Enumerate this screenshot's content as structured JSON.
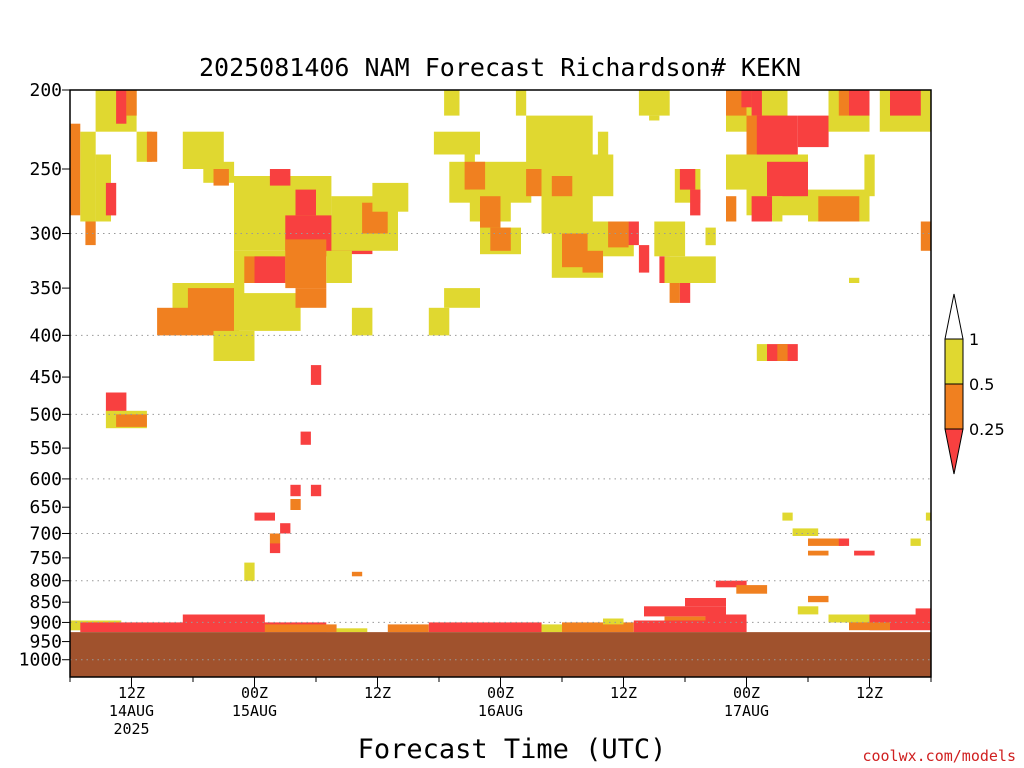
{
  "chart_data": {
    "type": "heatmap",
    "title": "2025081406 NAM Forecast Richardson# KEKN",
    "xlabel": "Forecast Time (UTC)",
    "ylabel": "",
    "credit": "coolwx.com/models",
    "x_units": "hours since 2025-08-14 06Z",
    "xlim": [
      0,
      84
    ],
    "y_axis": "pressure (hPa), log scale, inverted",
    "ylim": [
      1050,
      200
    ],
    "y_ticks": [
      200,
      250,
      300,
      350,
      400,
      450,
      500,
      550,
      600,
      650,
      700,
      750,
      800,
      850,
      900,
      950,
      1000
    ],
    "y_gridlines": [
      300,
      400,
      500,
      600,
      700,
      800,
      900,
      1000
    ],
    "x_ticks": [
      {
        "x": 6,
        "line1": "12Z",
        "line2": "14AUG",
        "line3": "2025"
      },
      {
        "x": 18,
        "line1": "00Z",
        "line2": "15AUG",
        "line3": ""
      },
      {
        "x": 30,
        "line1": "12Z",
        "line2": "",
        "line3": ""
      },
      {
        "x": 42,
        "line1": "00Z",
        "line2": "16AUG",
        "line3": ""
      },
      {
        "x": 54,
        "line1": "12Z",
        "line2": "",
        "line3": ""
      },
      {
        "x": 66,
        "line1": "00Z",
        "line2": "17AUG",
        "line3": ""
      },
      {
        "x": 78,
        "line1": "12Z",
        "line2": "",
        "line3": ""
      }
    ],
    "colorbar": {
      "ticks": [
        "1",
        "0.5",
        "0.25"
      ],
      "bins": [
        {
          "range": "<0.25",
          "color": "#f84040"
        },
        {
          "range": "0.25-0.5",
          "color": "#f08020"
        },
        {
          "range": "0.5-1",
          "color": "#e0d830"
        },
        {
          "range": ">1",
          "color": "#ffffff"
        }
      ]
    },
    "ground_color": "#a0522d",
    "surface_pressure": 925,
    "cells": [
      {
        "x0": 2.5,
        "x1": 6.5,
        "p0": 200,
        "p1": 225,
        "c": "y"
      },
      {
        "x0": 4.5,
        "x1": 5.5,
        "p0": 200,
        "p1": 220,
        "c": "r"
      },
      {
        "x0": 5.5,
        "x1": 6.5,
        "p0": 200,
        "p1": 215,
        "c": "o"
      },
      {
        "x0": 0,
        "x1": 1,
        "p0": 220,
        "p1": 285,
        "c": "o"
      },
      {
        "x0": 1,
        "x1": 2.5,
        "p0": 225,
        "p1": 290,
        "c": "y"
      },
      {
        "x0": 2.5,
        "x1": 4,
        "p0": 240,
        "p1": 290,
        "c": "y"
      },
      {
        "x0": 3.5,
        "x1": 4.5,
        "p0": 260,
        "p1": 285,
        "c": "r"
      },
      {
        "x0": 1.5,
        "x1": 2.5,
        "p0": 290,
        "p1": 310,
        "c": "o"
      },
      {
        "x0": 6.5,
        "x1": 8,
        "p0": 225,
        "p1": 245,
        "c": "y"
      },
      {
        "x0": 7.5,
        "x1": 8.5,
        "p0": 225,
        "p1": 245,
        "c": "o"
      },
      {
        "x0": 11,
        "x1": 15,
        "p0": 225,
        "p1": 250,
        "c": "y"
      },
      {
        "x0": 13,
        "x1": 16,
        "p0": 245,
        "p1": 260,
        "c": "y"
      },
      {
        "x0": 14,
        "x1": 15.5,
        "p0": 250,
        "p1": 262,
        "c": "o"
      },
      {
        "x0": 16,
        "x1": 25.5,
        "p0": 255,
        "p1": 315,
        "c": "y"
      },
      {
        "x0": 19.5,
        "x1": 21.5,
        "p0": 250,
        "p1": 262,
        "c": "r"
      },
      {
        "x0": 22,
        "x1": 24,
        "p0": 265,
        "p1": 285,
        "c": "r"
      },
      {
        "x0": 21,
        "x1": 27,
        "p0": 285,
        "p1": 320,
        "c": "r"
      },
      {
        "x0": 26,
        "x1": 29.5,
        "p0": 280,
        "p1": 318,
        "c": "r"
      },
      {
        "x0": 25.5,
        "x1": 32,
        "p0": 270,
        "p1": 315,
        "c": "y"
      },
      {
        "x0": 28.5,
        "x1": 31,
        "p0": 275,
        "p1": 300,
        "c": "o"
      },
      {
        "x0": 29.5,
        "x1": 33,
        "p0": 260,
        "p1": 282,
        "c": "y"
      },
      {
        "x0": 16,
        "x1": 22,
        "p0": 315,
        "p1": 345,
        "c": "y"
      },
      {
        "x0": 17,
        "x1": 20,
        "p0": 320,
        "p1": 345,
        "c": "o"
      },
      {
        "x0": 18,
        "x1": 21,
        "p0": 320,
        "p1": 345,
        "c": "r"
      },
      {
        "x0": 21,
        "x1": 25,
        "p0": 305,
        "p1": 350,
        "c": "o"
      },
      {
        "x0": 25,
        "x1": 27.5,
        "p0": 315,
        "p1": 345,
        "c": "y"
      },
      {
        "x0": 10,
        "x1": 17,
        "p0": 345,
        "p1": 375,
        "c": "y"
      },
      {
        "x0": 11.5,
        "x1": 16,
        "p0": 350,
        "p1": 395,
        "c": "o"
      },
      {
        "x0": 8.5,
        "x1": 16.5,
        "p0": 370,
        "p1": 400,
        "c": "o"
      },
      {
        "x0": 16,
        "x1": 22.5,
        "p0": 355,
        "p1": 395,
        "c": "y"
      },
      {
        "x0": 22,
        "x1": 25,
        "p0": 350,
        "p1": 370,
        "c": "o"
      },
      {
        "x0": 14,
        "x1": 18,
        "p0": 395,
        "p1": 430,
        "c": "y"
      },
      {
        "x0": 27.5,
        "x1": 29.5,
        "p0": 370,
        "p1": 400,
        "c": "y"
      },
      {
        "x0": 35,
        "x1": 37,
        "p0": 370,
        "p1": 400,
        "c": "y"
      },
      {
        "x0": 36.5,
        "x1": 40,
        "p0": 350,
        "p1": 370,
        "c": "y"
      },
      {
        "x0": 3.5,
        "x1": 5.5,
        "p0": 470,
        "p1": 500,
        "c": "r"
      },
      {
        "x0": 3.5,
        "x1": 7.5,
        "p0": 495,
        "p1": 520,
        "c": "y"
      },
      {
        "x0": 4.5,
        "x1": 7.5,
        "p0": 500,
        "p1": 518,
        "c": "o"
      },
      {
        "x0": 23.5,
        "x1": 24.5,
        "p0": 435,
        "p1": 460,
        "c": "r"
      },
      {
        "x0": 22.5,
        "x1": 23.5,
        "p0": 525,
        "p1": 545,
        "c": "r"
      },
      {
        "x0": 21.5,
        "x1": 22.5,
        "p0": 610,
        "p1": 630,
        "c": "r"
      },
      {
        "x0": 23.5,
        "x1": 24.5,
        "p0": 610,
        "p1": 630,
        "c": "r"
      },
      {
        "x0": 21.5,
        "x1": 22.5,
        "p0": 635,
        "p1": 655,
        "c": "o"
      },
      {
        "x0": 18,
        "x1": 20,
        "p0": 660,
        "p1": 675,
        "c": "r"
      },
      {
        "x0": 20.5,
        "x1": 21.5,
        "p0": 680,
        "p1": 700,
        "c": "r"
      },
      {
        "x0": 19.5,
        "x1": 20.5,
        "p0": 700,
        "p1": 720,
        "c": "o"
      },
      {
        "x0": 19.5,
        "x1": 20.5,
        "p0": 720,
        "p1": 740,
        "c": "r"
      },
      {
        "x0": 17,
        "x1": 18,
        "p0": 760,
        "p1": 800,
        "c": "y"
      },
      {
        "x0": 27.5,
        "x1": 28.5,
        "p0": 780,
        "p1": 790,
        "c": "o"
      },
      {
        "x0": 35.5,
        "x1": 40,
        "p0": 225,
        "p1": 240,
        "c": "y"
      },
      {
        "x0": 36.5,
        "x1": 38,
        "p0": 200,
        "p1": 215,
        "c": "y"
      },
      {
        "x0": 38.5,
        "x1": 39.5,
        "p0": 240,
        "p1": 250,
        "c": "y"
      },
      {
        "x0": 37,
        "x1": 45,
        "p0": 245,
        "p1": 275,
        "c": "y"
      },
      {
        "x0": 38.5,
        "x1": 40.5,
        "p0": 245,
        "p1": 265,
        "c": "o"
      },
      {
        "x0": 39,
        "x1": 43,
        "p0": 265,
        "p1": 290,
        "c": "y"
      },
      {
        "x0": 40,
        "x1": 42,
        "p0": 270,
        "p1": 300,
        "c": "o"
      },
      {
        "x0": 40,
        "x1": 44,
        "p0": 295,
        "p1": 318,
        "c": "y"
      },
      {
        "x0": 41,
        "x1": 43,
        "p0": 295,
        "p1": 315,
        "c": "o"
      },
      {
        "x0": 43.5,
        "x1": 44.5,
        "p0": 200,
        "p1": 215,
        "c": "y"
      },
      {
        "x0": 44.5,
        "x1": 51,
        "p0": 215,
        "p1": 250,
        "c": "y"
      },
      {
        "x0": 44.5,
        "x1": 46,
        "p0": 250,
        "p1": 270,
        "c": "o"
      },
      {
        "x0": 46,
        "x1": 51,
        "p0": 250,
        "p1": 300,
        "c": "y"
      },
      {
        "x0": 47,
        "x1": 49,
        "p0": 255,
        "p1": 270,
        "c": "o"
      },
      {
        "x0": 50,
        "x1": 53,
        "p0": 240,
        "p1": 270,
        "c": "y"
      },
      {
        "x0": 49,
        "x1": 50,
        "p0": 290,
        "p1": 310,
        "c": "o"
      },
      {
        "x0": 47,
        "x1": 52,
        "p0": 290,
        "p1": 340,
        "c": "y"
      },
      {
        "x0": 48,
        "x1": 50.5,
        "p0": 300,
        "p1": 330,
        "c": "o"
      },
      {
        "x0": 50,
        "x1": 52,
        "p0": 315,
        "p1": 335,
        "c": "o"
      },
      {
        "x0": 51.5,
        "x1": 52.5,
        "p0": 225,
        "p1": 240,
        "c": "y"
      },
      {
        "x0": 52,
        "x1": 55,
        "p0": 290,
        "p1": 320,
        "c": "y"
      },
      {
        "x0": 52.5,
        "x1": 54.5,
        "p0": 290,
        "p1": 312,
        "c": "o"
      },
      {
        "x0": 54.5,
        "x1": 55.5,
        "p0": 290,
        "p1": 310,
        "c": "r"
      },
      {
        "x0": 55.5,
        "x1": 58.5,
        "p0": 200,
        "p1": 215,
        "c": "y"
      },
      {
        "x0": 56.5,
        "x1": 57.5,
        "p0": 215,
        "p1": 218,
        "c": "y"
      },
      {
        "x0": 55.5,
        "x1": 56.5,
        "p0": 310,
        "p1": 335,
        "c": "r"
      },
      {
        "x0": 57,
        "x1": 60,
        "p0": 290,
        "p1": 320,
        "c": "y"
      },
      {
        "x0": 57.5,
        "x1": 58.5,
        "p0": 320,
        "p1": 345,
        "c": "r"
      },
      {
        "x0": 58,
        "x1": 60,
        "p0": 320,
        "p1": 345,
        "c": "y"
      },
      {
        "x0": 58.5,
        "x1": 59.5,
        "p0": 345,
        "p1": 365,
        "c": "o"
      },
      {
        "x0": 59.5,
        "x1": 60.5,
        "p0": 345,
        "p1": 365,
        "c": "r"
      },
      {
        "x0": 60,
        "x1": 63,
        "p0": 320,
        "p1": 345,
        "c": "y"
      },
      {
        "x0": 59,
        "x1": 61.5,
        "p0": 250,
        "p1": 275,
        "c": "y"
      },
      {
        "x0": 59.5,
        "x1": 61,
        "p0": 250,
        "p1": 265,
        "c": "r"
      },
      {
        "x0": 60.5,
        "x1": 61.5,
        "p0": 265,
        "p1": 285,
        "c": "r"
      },
      {
        "x0": 62,
        "x1": 63,
        "p0": 295,
        "p1": 310,
        "c": "y"
      },
      {
        "x0": 64,
        "x1": 70,
        "p0": 200,
        "p1": 225,
        "c": "y"
      },
      {
        "x0": 64,
        "x1": 66,
        "p0": 200,
        "p1": 215,
        "c": "o"
      },
      {
        "x0": 65.5,
        "x1": 66.5,
        "p0": 200,
        "p1": 210,
        "c": "r"
      },
      {
        "x0": 66.5,
        "x1": 67.5,
        "p0": 200,
        "p1": 215,
        "c": "r"
      },
      {
        "x0": 66,
        "x1": 70,
        "p0": 215,
        "p1": 250,
        "c": "o"
      },
      {
        "x0": 67,
        "x1": 71,
        "p0": 215,
        "p1": 240,
        "c": "r"
      },
      {
        "x0": 71,
        "x1": 74,
        "p0": 215,
        "p1": 235,
        "c": "r"
      },
      {
        "x0": 64,
        "x1": 66,
        "p0": 240,
        "p1": 265,
        "c": "y"
      },
      {
        "x0": 66,
        "x1": 72,
        "p0": 240,
        "p1": 285,
        "c": "y"
      },
      {
        "x0": 68,
        "x1": 72,
        "p0": 245,
        "p1": 270,
        "c": "r"
      },
      {
        "x0": 66.5,
        "x1": 68.5,
        "p0": 270,
        "p1": 290,
        "c": "r"
      },
      {
        "x0": 68.5,
        "x1": 69.5,
        "p0": 270,
        "p1": 290,
        "c": "y"
      },
      {
        "x0": 64,
        "x1": 65,
        "p0": 270,
        "p1": 290,
        "c": "o"
      },
      {
        "x0": 74,
        "x1": 78,
        "p0": 200,
        "p1": 225,
        "c": "y"
      },
      {
        "x0": 75,
        "x1": 76,
        "p0": 200,
        "p1": 215,
        "c": "o"
      },
      {
        "x0": 76,
        "x1": 78,
        "p0": 200,
        "p1": 215,
        "c": "r"
      },
      {
        "x0": 79,
        "x1": 84,
        "p0": 200,
        "p1": 225,
        "c": "y"
      },
      {
        "x0": 80,
        "x1": 83,
        "p0": 200,
        "p1": 215,
        "c": "r"
      },
      {
        "x0": 72,
        "x1": 78,
        "p0": 265,
        "p1": 290,
        "c": "y"
      },
      {
        "x0": 73,
        "x1": 77,
        "p0": 270,
        "p1": 290,
        "c": "o"
      },
      {
        "x0": 77.5,
        "x1": 78.5,
        "p0": 240,
        "p1": 270,
        "c": "y"
      },
      {
        "x0": 83,
        "x1": 84,
        "p0": 290,
        "p1": 315,
        "c": "o"
      },
      {
        "x0": 76,
        "x1": 77,
        "p0": 340,
        "p1": 345,
        "c": "y"
      },
      {
        "x0": 67,
        "x1": 68,
        "p0": 410,
        "p1": 430,
        "c": "y"
      },
      {
        "x0": 68,
        "x1": 71,
        "p0": 410,
        "p1": 430,
        "c": "r"
      },
      {
        "x0": 69,
        "x1": 70,
        "p0": 410,
        "p1": 430,
        "c": "o"
      },
      {
        "x0": 69.5,
        "x1": 70.5,
        "p0": 660,
        "p1": 675,
        "c": "y"
      },
      {
        "x0": 70.5,
        "x1": 73,
        "p0": 690,
        "p1": 705,
        "c": "y"
      },
      {
        "x0": 72,
        "x1": 75.5,
        "p0": 710,
        "p1": 725,
        "c": "o"
      },
      {
        "x0": 75,
        "x1": 76,
        "p0": 710,
        "p1": 725,
        "c": "r"
      },
      {
        "x0": 72,
        "x1": 74,
        "p0": 735,
        "p1": 745,
        "c": "o"
      },
      {
        "x0": 76.5,
        "x1": 78.5,
        "p0": 735,
        "p1": 745,
        "c": "r"
      },
      {
        "x0": 82,
        "x1": 83,
        "p0": 710,
        "p1": 725,
        "c": "y"
      },
      {
        "x0": 83.5,
        "x1": 84,
        "p0": 660,
        "p1": 675,
        "c": "y"
      },
      {
        "x0": 63,
        "x1": 66,
        "p0": 800,
        "p1": 815,
        "c": "r"
      },
      {
        "x0": 65,
        "x1": 68,
        "p0": 810,
        "p1": 830,
        "c": "o"
      },
      {
        "x0": 60,
        "x1": 64,
        "p0": 840,
        "p1": 860,
        "c": "r"
      },
      {
        "x0": 56,
        "x1": 64,
        "p0": 860,
        "p1": 885,
        "c": "r"
      },
      {
        "x0": 58,
        "x1": 62,
        "p0": 885,
        "p1": 900,
        "c": "o"
      },
      {
        "x0": 62,
        "x1": 66,
        "p0": 880,
        "p1": 900,
        "c": "r"
      },
      {
        "x0": 72,
        "x1": 74,
        "p0": 835,
        "p1": 850,
        "c": "o"
      },
      {
        "x0": 71,
        "x1": 73,
        "p0": 860,
        "p1": 880,
        "c": "y"
      },
      {
        "x0": 0,
        "x1": 5,
        "p0": 895,
        "p1": 920,
        "c": "y"
      },
      {
        "x0": 1,
        "x1": 25,
        "p0": 900,
        "p1": 925,
        "c": "r"
      },
      {
        "x0": 11,
        "x1": 19,
        "p0": 880,
        "p1": 900,
        "c": "r"
      },
      {
        "x0": 19,
        "x1": 26,
        "p0": 905,
        "p1": 925,
        "c": "o"
      },
      {
        "x0": 26,
        "x1": 29,
        "p0": 915,
        "p1": 925,
        "c": "y"
      },
      {
        "x0": 31,
        "x1": 35,
        "p0": 905,
        "p1": 925,
        "c": "o"
      },
      {
        "x0": 35,
        "x1": 46,
        "p0": 900,
        "p1": 925,
        "c": "r"
      },
      {
        "x0": 46,
        "x1": 48,
        "p0": 905,
        "p1": 925,
        "c": "y"
      },
      {
        "x0": 48,
        "x1": 55,
        "p0": 900,
        "p1": 925,
        "c": "o"
      },
      {
        "x0": 52,
        "x1": 54,
        "p0": 890,
        "p1": 905,
        "c": "y"
      },
      {
        "x0": 55,
        "x1": 66,
        "p0": 895,
        "p1": 925,
        "c": "r"
      },
      {
        "x0": 74,
        "x1": 78,
        "p0": 880,
        "p1": 900,
        "c": "y"
      },
      {
        "x0": 78,
        "x1": 84,
        "p0": 880,
        "p1": 920,
        "c": "r"
      },
      {
        "x0": 76,
        "x1": 80,
        "p0": 900,
        "p1": 920,
        "c": "o"
      },
      {
        "x0": 82.5,
        "x1": 84,
        "p0": 865,
        "p1": 880,
        "c": "r"
      }
    ]
  }
}
